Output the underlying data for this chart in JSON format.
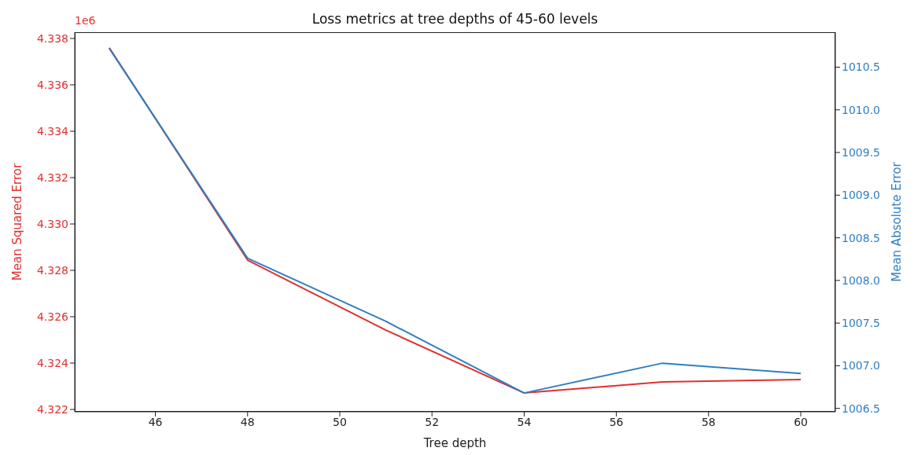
{
  "chart_data": {
    "type": "line",
    "title": "Loss metrics at tree depths of 45-60 levels",
    "xlabel": "Tree depth",
    "ylabel": "Mean Squared Error",
    "y2label": "Mean Absolute Error",
    "annotations": [
      "1e6"
    ],
    "x": [
      45,
      48,
      51,
      54,
      57,
      60
    ],
    "series": [
      {
        "color": "#e03030",
        "values": [
          4.3376,
          4.32844,
          4.32542,
          4.32271,
          4.32319,
          4.32329
        ]
      },
      {
        "color": "#2f7fc1",
        "axis": "y2",
        "values": [
          1010.72,
          1008.26,
          1007.52,
          1006.68,
          1007.03,
          1006.91
        ]
      }
    ],
    "xlim": [
      44.25,
      60.75
    ],
    "xticks": [
      46,
      48,
      50,
      52,
      54,
      56,
      58,
      60
    ],
    "ylim": [
      4.3219,
      4.33827
    ],
    "yticks": [
      4.322,
      4.324,
      4.326,
      4.328,
      {
        "value": 4.33,
        "label": "4.330"
      },
      4.332,
      4.334,
      4.336,
      4.338
    ],
    "y2lim": [
      1006.46,
      1010.91
    ],
    "y2ticks": [
      1006.5,
      {
        "value": 1007,
        "label": "1007.0"
      },
      1007.5,
      {
        "value": 1008,
        "label": "1008.0"
      },
      1008.5,
      {
        "value": 1009,
        "label": "1009.0"
      },
      1009.5,
      {
        "value": 1010,
        "label": "1010.0"
      },
      1010.5
    ],
    "grid": false,
    "legend": false,
    "marker": "none",
    "line_style": "solid"
  }
}
